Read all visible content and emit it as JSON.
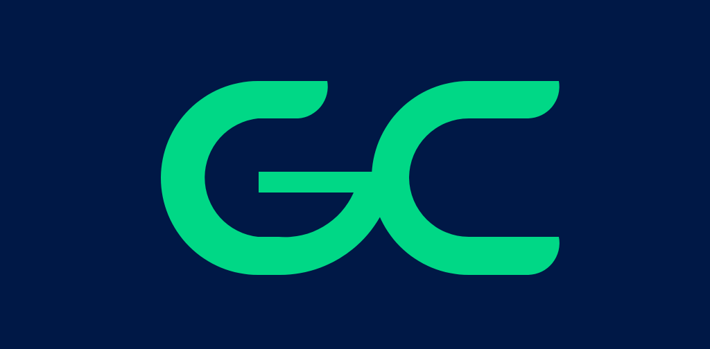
{
  "brand": {
    "logo_text": "GC",
    "logo_icon": "gc-monogram-logo-icon"
  },
  "colors": {
    "background": "#001846",
    "logo": "#00D886"
  }
}
